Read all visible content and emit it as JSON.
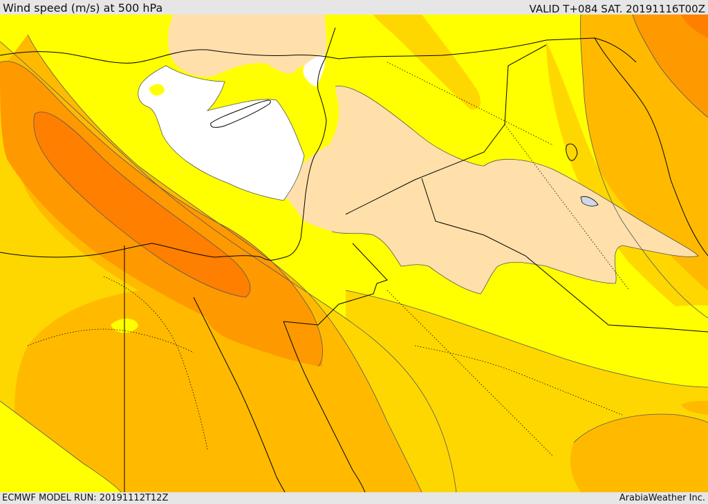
{
  "header": {
    "title": "Wind speed (m/s) at 500 hPa",
    "valid": "VALID T+084 SAT. 20191116T00Z"
  },
  "footer": {
    "model_run": "ECMWF MODEL RUN: 20191112T12Z",
    "credit": "ArabiaWeather Inc."
  },
  "colors": {
    "calm": "#ffffff",
    "light": "#ffe0aa",
    "moderate": "#ffff00",
    "fresh": "#ffd700",
    "strong": "#ffba00",
    "very_strong": "#ff9900",
    "jet_core": "#ff7f00",
    "contour": "#555555",
    "border": "#000000"
  }
}
